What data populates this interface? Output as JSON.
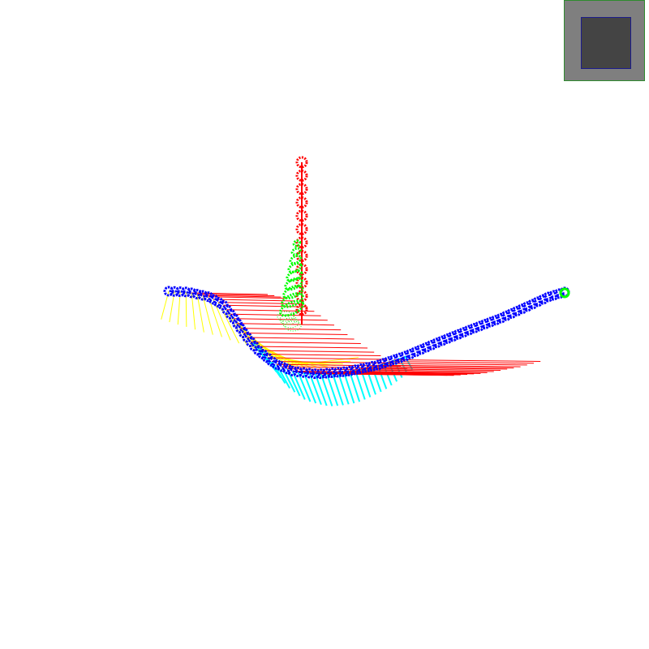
{
  "scene": {
    "background": "#ffffff",
    "colors": {
      "vertical_spine": "#ff0000",
      "green_markers": "#00ff00",
      "main_curve": "#0000ff",
      "red_rulings": "#ff0000",
      "yellow_rulings": "#ffff00",
      "cyan_rulings": "#00ffff",
      "end_marker": "#00ff00"
    }
  },
  "minimap": {
    "frame_color": "#7f7f7f",
    "frame_border": "#2e8b2e",
    "view_color": "#444444",
    "view_border": "#1c1c8c"
  }
}
